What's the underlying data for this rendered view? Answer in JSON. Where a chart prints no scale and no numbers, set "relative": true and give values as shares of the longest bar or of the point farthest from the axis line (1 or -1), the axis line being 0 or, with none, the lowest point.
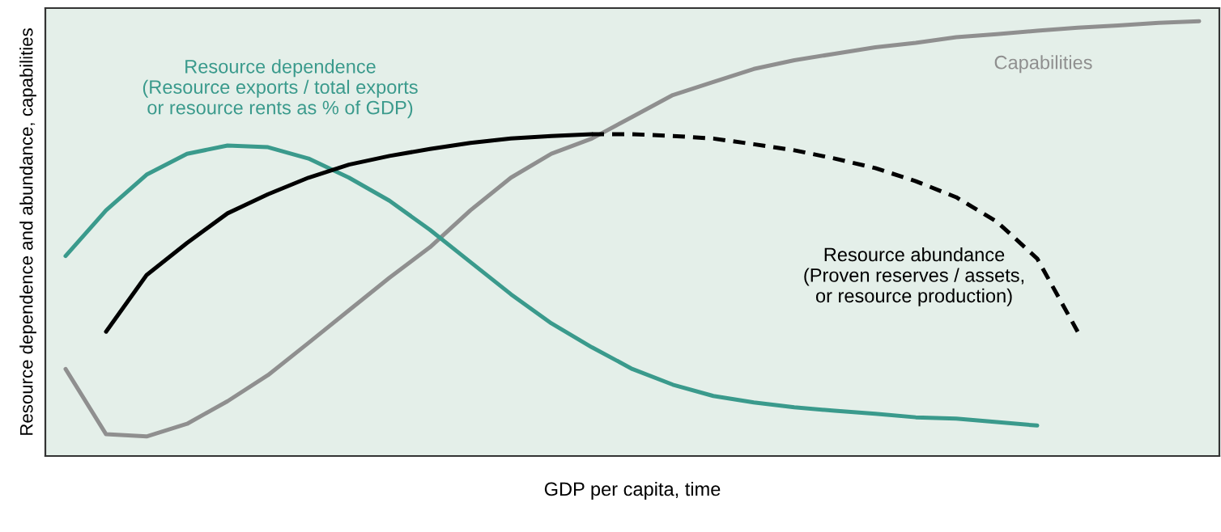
{
  "chart_data": {
    "type": "line",
    "relative": true,
    "xlabel": "GDP per capita, time",
    "ylabel": "Resource dependence and abundance, capabilities",
    "legend": false,
    "marker": "none",
    "categories": [
      null,
      null,
      null,
      null,
      null,
      null,
      null,
      null,
      null,
      null,
      null,
      null,
      null,
      null,
      null,
      null,
      null,
      null,
      null,
      null,
      null,
      null,
      null,
      null,
      null,
      null,
      null,
      null,
      null
    ],
    "series": [
      {
        "name": "Capabilities",
        "color": "#8f8f8f",
        "line_style": "solid",
        "values": [
          0.2,
          0.05,
          0.045,
          0.074,
          0.126,
          0.186,
          0.26,
          0.335,
          0.41,
          0.48,
          0.565,
          0.64,
          0.695,
          0.73,
          0.78,
          0.83,
          0.86,
          0.89,
          0.91,
          0.925,
          0.94,
          0.95,
          0.963,
          0.97,
          0.978,
          0.985,
          0.99,
          0.996,
          1.0
        ]
      },
      {
        "name": "Resource dependence\n(Resource exports / total exports\nor resource rents as % of GDP)",
        "color": "#3a9a8c",
        "line_style": "solid",
        "values": [
          0.46,
          0.565,
          0.647,
          0.695,
          0.714,
          0.71,
          0.684,
          0.64,
          0.587,
          0.52,
          0.446,
          0.372,
          0.305,
          0.25,
          0.2,
          0.164,
          0.138,
          0.123,
          0.112,
          0.104,
          0.097,
          0.089,
          0.086,
          0.078,
          0.07,
          null,
          null,
          null,
          null
        ]
      },
      {
        "name": "Resource abundance\n(Proven reserves / assets,\nor resource production)",
        "color": "#000000",
        "line_style": "solid",
        "values": [
          null,
          0.286,
          0.416,
          0.49,
          0.558,
          0.602,
          0.64,
          0.67,
          0.69,
          0.706,
          0.72,
          0.73,
          0.736,
          0.74,
          null,
          null,
          null,
          null,
          null,
          null,
          null,
          null,
          null,
          null,
          null,
          null,
          null,
          null,
          null
        ]
      },
      {
        "color": "#000000",
        "line_style": "dashed",
        "values": [
          null,
          null,
          null,
          null,
          null,
          null,
          null,
          null,
          null,
          null,
          null,
          null,
          null,
          0.74,
          0.74,
          0.736,
          0.73,
          0.717,
          0.703,
          0.684,
          0.662,
          0.632,
          0.595,
          0.539,
          0.454,
          0.286,
          null,
          null,
          null
        ]
      }
    ]
  }
}
